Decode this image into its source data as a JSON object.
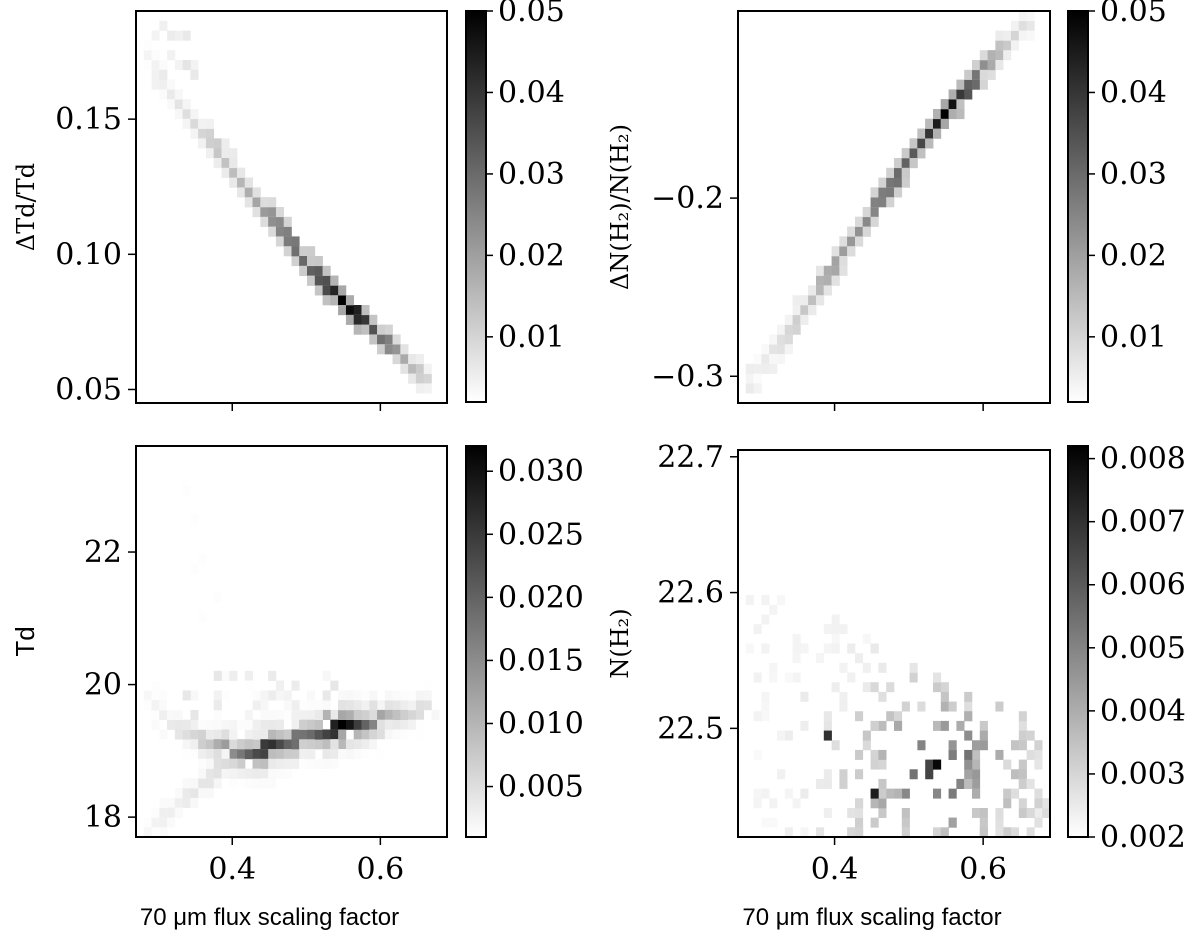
{
  "chart_data": [
    {
      "type": "heatmap",
      "panel": "top-left",
      "xlabel": "",
      "ylabel": "ΔTd/Td",
      "xlim": [
        0.27,
        0.69
      ],
      "ylim": [
        0.045,
        0.19
      ],
      "xticks": [
        0.4,
        0.6
      ],
      "xtick_labels": [],
      "yticks": [
        0.05,
        0.1,
        0.15
      ],
      "ytick_labels": [
        "0.05",
        "0.10",
        "0.15"
      ],
      "colorbar": {
        "range": [
          0.002,
          0.05
        ],
        "ticks": [
          0.01,
          0.02,
          0.03,
          0.04,
          0.05
        ],
        "tick_labels": [
          "0.01",
          "0.02",
          "0.03",
          "0.04",
          "0.05"
        ]
      },
      "data_band": {
        "x": [
          0.29,
          0.31,
          0.33,
          0.35,
          0.37,
          0.39,
          0.41,
          0.43,
          0.45,
          0.47,
          0.49,
          0.51,
          0.53,
          0.55,
          0.57,
          0.59,
          0.61,
          0.63,
          0.65,
          0.67
        ],
        "y": [
          0.172,
          0.163,
          0.155,
          0.148,
          0.142,
          0.135,
          0.128,
          0.121,
          0.114,
          0.107,
          0.1,
          0.094,
          0.088,
          0.082,
          0.077,
          0.072,
          0.067,
          0.062,
          0.057,
          0.052
        ],
        "density": [
          0.004,
          0.005,
          0.007,
          0.009,
          0.011,
          0.013,
          0.015,
          0.018,
          0.022,
          0.026,
          0.029,
          0.032,
          0.036,
          0.05,
          0.042,
          0.032,
          0.026,
          0.018,
          0.012,
          0.008
        ]
      }
    },
    {
      "type": "heatmap",
      "panel": "top-right",
      "xlabel": "",
      "ylabel": "ΔN(H₂)/N(H₂)",
      "xlim": [
        0.27,
        0.69
      ],
      "ylim": [
        -0.315,
        -0.095
      ],
      "xticks": [
        0.4,
        0.6
      ],
      "xtick_labels": [],
      "yticks": [
        -0.3,
        -0.2
      ],
      "ytick_labels": [
        "−0.3",
        "−0.2"
      ],
      "colorbar": {
        "range": [
          0.002,
          0.05
        ],
        "ticks": [
          0.01,
          0.02,
          0.03,
          0.04,
          0.05
        ],
        "tick_labels": [
          "0.01",
          "0.02",
          "0.03",
          "0.04",
          "0.05"
        ]
      },
      "data_band": {
        "x": [
          0.29,
          0.31,
          0.33,
          0.35,
          0.37,
          0.39,
          0.41,
          0.43,
          0.45,
          0.47,
          0.49,
          0.51,
          0.53,
          0.55,
          0.57,
          0.59,
          0.61,
          0.63,
          0.65,
          0.67
        ],
        "y": [
          -0.3,
          -0.29,
          -0.28,
          -0.268,
          -0.256,
          -0.245,
          -0.232,
          -0.22,
          -0.208,
          -0.196,
          -0.185,
          -0.173,
          -0.162,
          -0.152,
          -0.142,
          -0.132,
          -0.123,
          -0.114,
          -0.106,
          -0.099
        ],
        "density": [
          0.004,
          0.006,
          0.008,
          0.011,
          0.014,
          0.017,
          0.02,
          0.022,
          0.025,
          0.027,
          0.03,
          0.033,
          0.04,
          0.05,
          0.036,
          0.028,
          0.018,
          0.012,
          0.008,
          0.005
        ]
      }
    },
    {
      "type": "heatmap",
      "panel": "bottom-left",
      "xlabel": "70 μm flux scaling factor",
      "ylabel": "Td",
      "xlim": [
        0.27,
        0.69
      ],
      "ylim": [
        17.7,
        23.6
      ],
      "xticks": [
        0.4,
        0.6
      ],
      "xtick_labels": [
        "0.4",
        "0.6"
      ],
      "yticks": [
        18,
        20,
        22
      ],
      "ytick_labels": [
        "18",
        "20",
        "22"
      ],
      "colorbar": {
        "range": [
          0.001,
          0.032
        ],
        "ticks": [
          0.005,
          0.01,
          0.015,
          0.02,
          0.025,
          0.03
        ],
        "tick_labels": [
          "0.005",
          "0.010",
          "0.015",
          "0.020",
          "0.025",
          "0.030"
        ]
      },
      "data_band": {
        "x": [
          0.29,
          0.31,
          0.33,
          0.35,
          0.37,
          0.39,
          0.41,
          0.43,
          0.45,
          0.47,
          0.49,
          0.51,
          0.53,
          0.55,
          0.57,
          0.59,
          0.61,
          0.63,
          0.65,
          0.67
        ],
        "y": [
          19.8,
          19.5,
          19.3,
          19.2,
          19.1,
          19.05,
          19.0,
          19.0,
          19.05,
          19.1,
          19.2,
          19.25,
          19.3,
          19.35,
          19.4,
          19.45,
          19.5,
          19.55,
          19.6,
          19.7
        ],
        "density": [
          0.002,
          0.003,
          0.004,
          0.006,
          0.008,
          0.012,
          0.016,
          0.022,
          0.026,
          0.02,
          0.017,
          0.019,
          0.024,
          0.032,
          0.022,
          0.014,
          0.01,
          0.007,
          0.005,
          0.004
        ]
      },
      "data_band_lower": {
        "x": [
          0.29,
          0.31,
          0.33,
          0.35,
          0.37,
          0.39,
          0.41
        ],
        "y": [
          17.8,
          18.0,
          18.2,
          18.4,
          18.6,
          18.8,
          18.9
        ],
        "density": [
          0.002,
          0.003,
          0.003,
          0.004,
          0.004,
          0.005,
          0.006
        ]
      }
    },
    {
      "type": "heatmap",
      "panel": "bottom-right",
      "xlabel": "70 μm flux scaling factor",
      "ylabel": "N(H₂)",
      "xlim": [
        0.27,
        0.69
      ],
      "ylim": [
        22.42,
        22.705
      ],
      "xticks": [
        0.4,
        0.6
      ],
      "xtick_labels": [
        "0.4",
        "0.6"
      ],
      "yticks": [
        22.5,
        22.6,
        22.7
      ],
      "ytick_labels": [
        "22.5",
        "22.6",
        "22.7"
      ],
      "colorbar": {
        "range": [
          0.002,
          0.0082
        ],
        "ticks": [
          0.002,
          0.003,
          0.004,
          0.005,
          0.006,
          0.007,
          0.008
        ],
        "tick_labels": [
          "0.002",
          "0.003",
          "0.004",
          "0.005",
          "0.006",
          "0.007",
          "0.008"
        ]
      },
      "data_scatter_summary": {
        "x_range": [
          0.29,
          0.69
        ],
        "y_range": [
          22.42,
          22.61
        ],
        "peak": [
          0.54,
          22.47
        ],
        "peak_density": 0.008
      }
    }
  ]
}
